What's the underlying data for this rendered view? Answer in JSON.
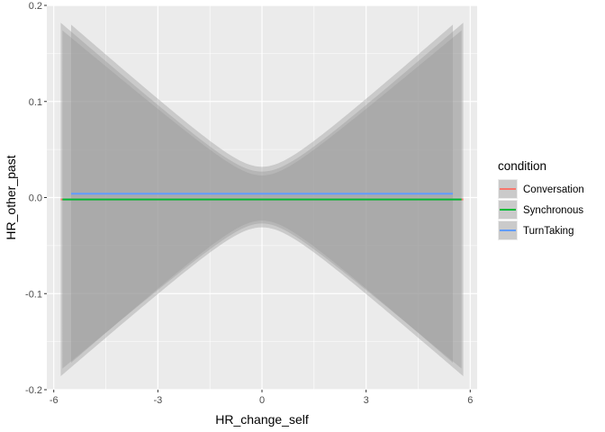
{
  "chart_data": {
    "type": "line",
    "xlabel": "HR_change_self",
    "ylabel": "HR_other_past",
    "xlim": [
      -6.2,
      6.2
    ],
    "ylim": [
      -0.2,
      0.2
    ],
    "x_ticks": [
      -6,
      -3,
      0,
      3,
      6
    ],
    "x_tick_labels": [
      "-6",
      "-3",
      "0",
      "3",
      "6"
    ],
    "y_ticks": [
      -0.2,
      -0.1,
      0.0,
      0.1,
      0.2
    ],
    "y_tick_labels": [
      "-0.2",
      "-0.1",
      "0.0",
      "0.1",
      "0.2"
    ],
    "grid": true,
    "legend": {
      "title": "condition",
      "placement": "right"
    },
    "series": [
      {
        "name": "Conversation",
        "color": "#F8766D",
        "x": [
          -5.8,
          5.8
        ],
        "y": [
          -0.002,
          -0.002
        ],
        "ribbon": {
          "x_min": -5.8,
          "x_max": 5.8,
          "half_width_at_0": 0.029,
          "half_width_at_edge": 0.184
        }
      },
      {
        "name": "Synchronous",
        "color": "#00BA38",
        "x": [
          -5.75,
          5.75
        ],
        "y": [
          -0.002,
          -0.002
        ],
        "ribbon": {
          "x_min": -5.75,
          "x_max": 5.75,
          "half_width_at_0": 0.025,
          "half_width_at_edge": 0.176
        }
      },
      {
        "name": "TurnTaking",
        "color": "#619CFF",
        "x": [
          -5.5,
          5.5
        ],
        "y": [
          0.004,
          0.004
        ],
        "ribbon": {
          "x_min": -5.5,
          "x_max": 5.5,
          "half_width_at_0": 0.028,
          "half_width_at_edge": 0.176
        }
      }
    ]
  }
}
